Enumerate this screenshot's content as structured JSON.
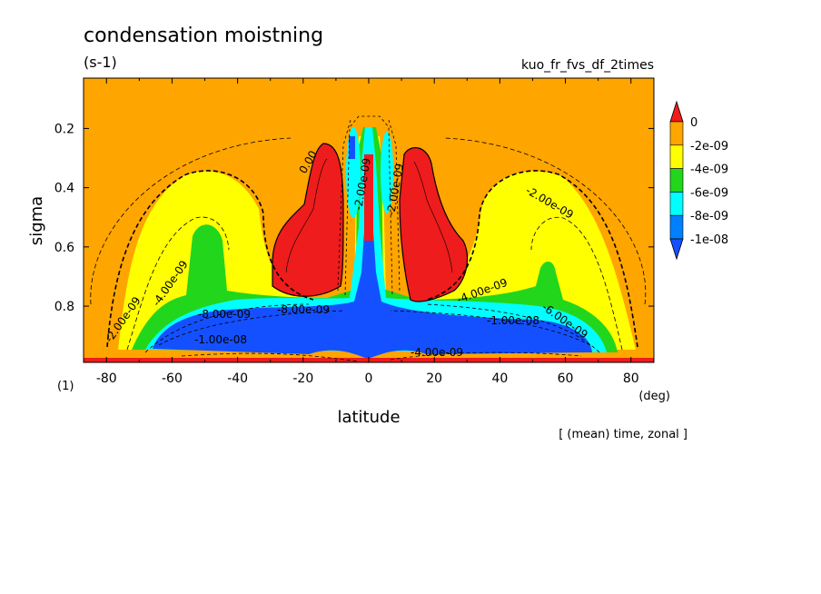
{
  "chart_data": {
    "type": "heatmap",
    "title": "condensation moistning",
    "units": "(s-1)",
    "run_name": "kuo_fr_fvs_df_2times",
    "xlabel": "latitude",
    "x_unit": "(deg)",
    "ylabel": "sigma",
    "y_unit": "(1)",
    "footnote": "[ (mean) time, zonal ]",
    "xlim": [
      -87,
      87
    ],
    "ylim": [
      0.99,
      0.03
    ],
    "x_ticks": [
      "-80",
      "-60",
      "-40",
      "-20",
      "0",
      "20",
      "40",
      "60",
      "80"
    ],
    "y_ticks": [
      "0.2",
      "0.4",
      "0.6",
      "0.8"
    ],
    "colorbar": {
      "labels": [
        "0",
        "-2e-09",
        "-4e-09",
        "-6e-09",
        "-8e-09",
        "-1e-08"
      ],
      "colors": [
        "#ee1c1c",
        "#ffa500",
        "#ffff00",
        "#22d61c",
        "#00ffff",
        "#0080ff",
        "#1450ff"
      ]
    },
    "contour_labels": [
      "0.00",
      "-2.00e-09",
      "-4.00e-09",
      "-6.00e-09",
      "-8.00e-09",
      "-1.00e-08"
    ],
    "regions": {
      "background_level": "0 to -2e-09",
      "upper_midlatitude_bands": "-2e-09 to -4e-09",
      "lower_tropospheric_core": "below -1e-08",
      "subtropical_upper_troposphere": "above 0"
    }
  }
}
